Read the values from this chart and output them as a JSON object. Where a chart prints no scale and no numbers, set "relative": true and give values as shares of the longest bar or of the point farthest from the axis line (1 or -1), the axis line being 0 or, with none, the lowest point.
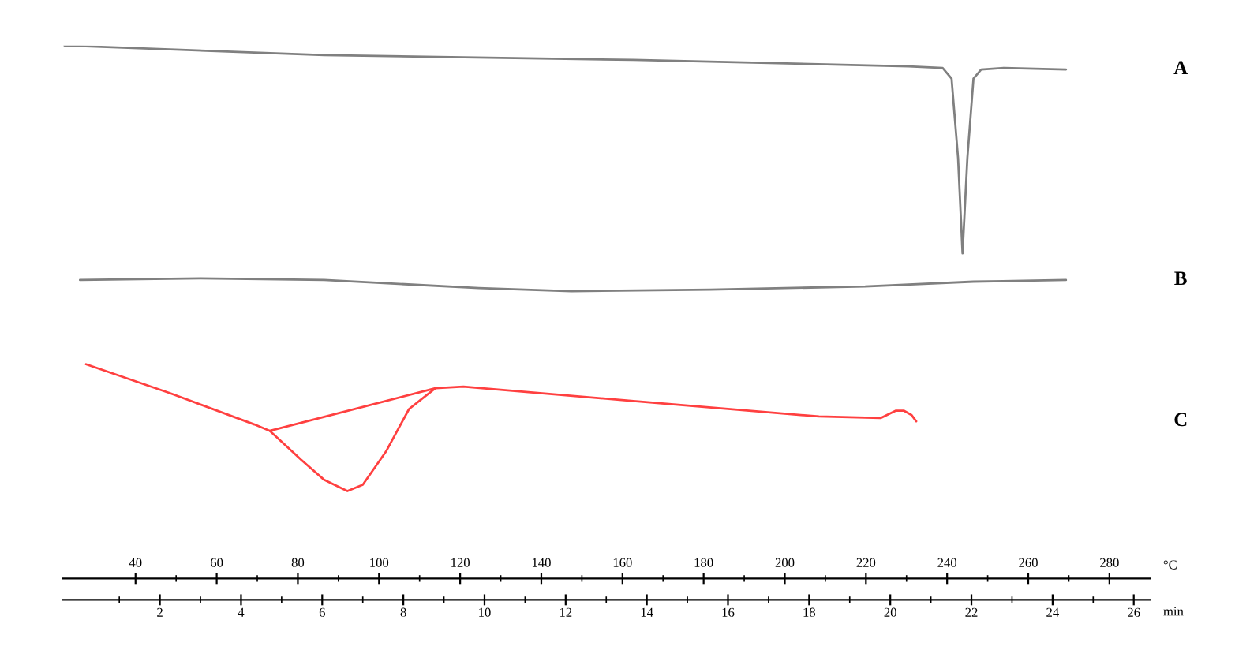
{
  "chart_data": {
    "type": "line",
    "relative": true,
    "xlabel": "°C",
    "x2label": "min",
    "xlim": [
      22,
      290
    ],
    "xticks": [
      40,
      {
        "value": 50,
        "label": null
      },
      60,
      {
        "value": 70,
        "label": null
      },
      80,
      {
        "value": 90,
        "label": null
      },
      100,
      {
        "value": 110,
        "label": null
      },
      120,
      {
        "value": 130,
        "label": null
      },
      140,
      {
        "value": 150,
        "label": null
      },
      160,
      {
        "value": 170,
        "label": null
      },
      180,
      {
        "value": 190,
        "label": null
      },
      200,
      {
        "value": 210,
        "label": null
      },
      220,
      {
        "value": 230,
        "label": null
      },
      240,
      {
        "value": 250,
        "label": null
      },
      260,
      {
        "value": 270,
        "label": null
      },
      280
    ],
    "x2lim": [
      -0.4,
      26.4
    ],
    "x2ticks": [
      {
        "value": 1,
        "label": null
      },
      2,
      {
        "value": 3,
        "label": null
      },
      4,
      {
        "value": 5,
        "label": null
      },
      6,
      {
        "value": 7,
        "label": null
      },
      8,
      {
        "value": 9,
        "label": null
      },
      10,
      {
        "value": 11,
        "label": null
      },
      12,
      {
        "value": 13,
        "label": null
      },
      14,
      {
        "value": 15,
        "label": null
      },
      16,
      {
        "value": 17,
        "label": null
      },
      18,
      {
        "value": 19,
        "label": null
      },
      20,
      {
        "value": 21,
        "label": null
      },
      22,
      {
        "value": 23,
        "label": null
      },
      24,
      {
        "value": 25,
        "label": null
      },
      26
    ],
    "grid": false,
    "legend": false,
    "line_style": "solid",
    "marker": "none",
    "series": [
      {
        "name": "A",
        "color": "#808080",
        "x": [
          22.5,
          86.5,
          162.7,
          230.5,
          238.9,
          241.1,
          242.7,
          243.8,
          245.0,
          246.5,
          248.4,
          254.1,
          269.3
        ],
        "values": [
          1.0,
          0.982,
          0.973,
          0.961,
          0.958,
          0.938,
          0.789,
          0.61,
          0.789,
          0.938,
          0.955,
          0.958,
          0.955
        ]
      },
      {
        "name": "B",
        "color": "#808080",
        "x": [
          26.3,
          56,
          86.5,
          124.6,
          147.4,
          181.7,
          219.8,
          246.5,
          269.3
        ],
        "values": [
          0.56,
          0.563,
          0.56,
          0.545,
          0.539,
          0.542,
          0.548,
          0.557,
          0.56
        ]
      },
      {
        "name": "C",
        "color": "#ff4040",
        "x": [
          27.8,
          48.4,
          69.3,
          73.1,
          80.8,
          86.5,
          92.2,
          96.0,
          101.7,
          107.4,
          113.9,
          120.8,
          162.7,
          208.4,
          223.6,
          227.4,
          229.3,
          231.2,
          232.4
        ],
        "values": [
          0.402,
          0.348,
          0.289,
          0.277,
          0.223,
          0.185,
          0.164,
          0.176,
          0.238,
          0.318,
          0.357,
          0.36,
          0.333,
          0.304,
          0.301,
          0.315,
          0.315,
          0.307,
          0.295
        ]
      },
      {
        "color": "#ff4040",
        "x": [
          73.1,
          113.9
        ],
        "values": [
          0.277,
          0.357
        ]
      }
    ]
  }
}
